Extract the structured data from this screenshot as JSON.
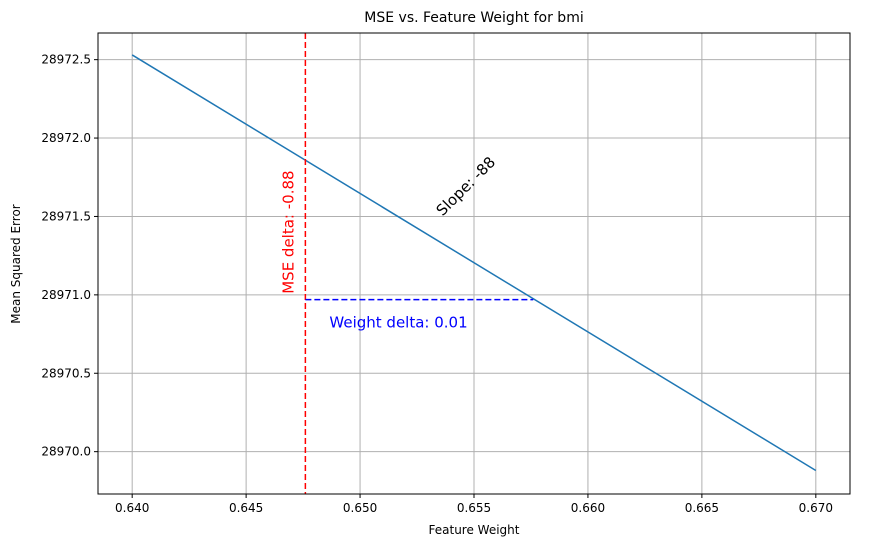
{
  "chart_data": {
    "type": "line",
    "title": "MSE vs. Feature Weight for bmi",
    "xlabel": "Feature Weight",
    "ylabel": "Mean Squared Error",
    "xlim": [
      0.6385,
      0.6715
    ],
    "ylim": [
      28969.73,
      28972.67
    ],
    "xticks": [
      0.64,
      0.645,
      0.65,
      0.655,
      0.66,
      0.665,
      0.67
    ],
    "xtick_labels": [
      "0.640",
      "0.645",
      "0.650",
      "0.655",
      "0.660",
      "0.665",
      "0.670"
    ],
    "yticks": [
      28970.0,
      28970.5,
      28971.0,
      28971.5,
      28972.0,
      28972.5
    ],
    "ytick_labels": [
      "28970.0",
      "28970.5",
      "28971.0",
      "28971.5",
      "28972.0",
      "28972.5"
    ],
    "grid": true,
    "series": [
      {
        "x": [
          0.64,
          0.67
        ],
        "y": [
          28972.53,
          28969.88
        ],
        "color": "#1f77b4"
      }
    ],
    "annotations": {
      "vline": {
        "x": 0.6476,
        "color": "#ff0000",
        "style": "dashed"
      },
      "hline": {
        "y": 28970.97,
        "x_start": 0.6476,
        "x_end": 0.6576,
        "color": "#0000ff",
        "style": "dashed"
      },
      "mse_delta_label": {
        "text": "MSE delta: -0.88",
        "color": "#ff0000"
      },
      "weight_delta_label": {
        "text": "Weight delta: 0.01",
        "color": "#0000ff"
      },
      "slope_label": {
        "text": "Slope: -88",
        "color": "#000000"
      }
    }
  }
}
